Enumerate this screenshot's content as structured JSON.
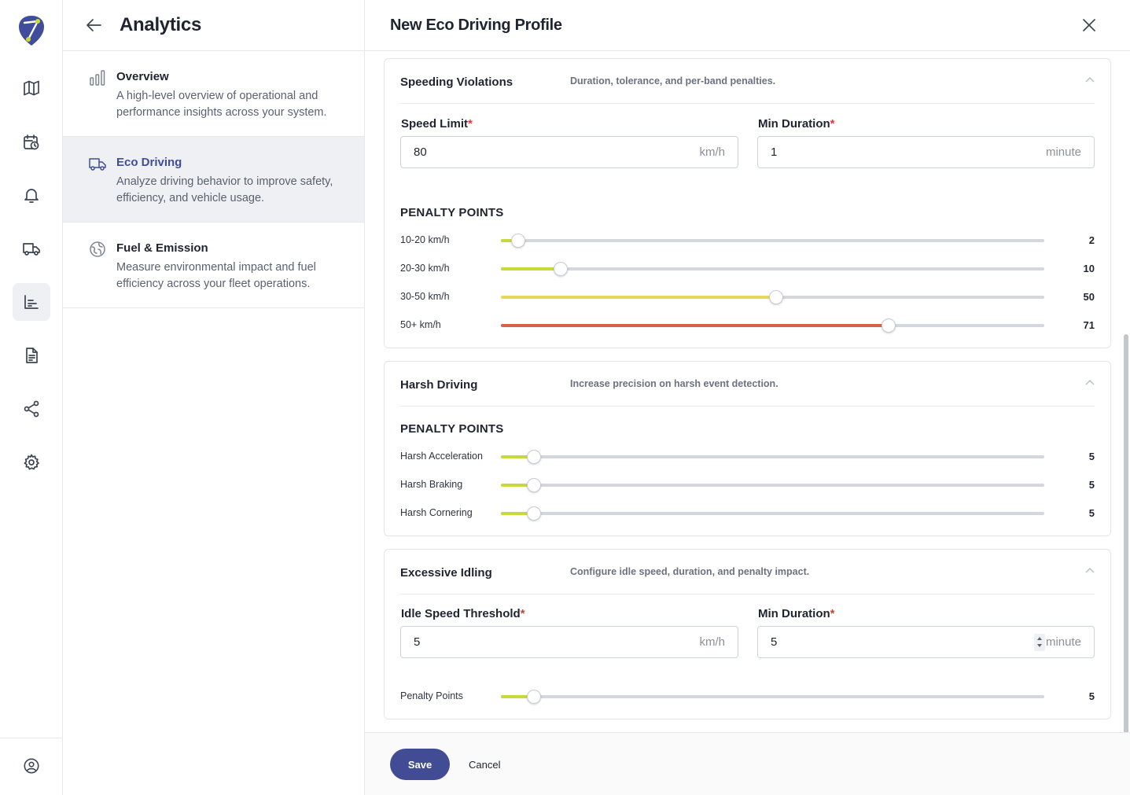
{
  "colors": {
    "accent": "#414c94",
    "low": "#c8d93a",
    "medium": "#e6d85a",
    "high": "#d9604a"
  },
  "nav": {
    "title": "Analytics",
    "items": [
      {
        "icon": "bar-chart-icon",
        "title": "Overview",
        "description": "A high-level overview of operational and performance insights across your system."
      },
      {
        "icon": "truck-icon",
        "title": "Eco Driving",
        "description": "Analyze driving behavior to improve safety, efficiency, and vehicle usage."
      },
      {
        "icon": "globe-leaf-icon",
        "title": "Fuel & Emission",
        "description": "Measure environmental impact and fuel efficiency across your fleet operations."
      }
    ]
  },
  "panel": {
    "title": "New Eco Driving Profile",
    "speeding": {
      "title": "Speeding Violations",
      "subtitle": "Duration, tolerance, and per-band penalties.",
      "speed_limit": {
        "label": "Speed Limit",
        "value": "80",
        "unit": "km/h"
      },
      "min_duration": {
        "label": "Min Duration",
        "value": "1",
        "unit": "minute"
      },
      "penalty_caption": "PENALTY POINTS",
      "bands": [
        {
          "label": "10-20 km/h",
          "value": 2,
          "level": "low"
        },
        {
          "label": "20-30 km/h",
          "value": 10,
          "level": "low"
        },
        {
          "label": "30-50 km/h",
          "value": 50,
          "level": "medium"
        },
        {
          "label": "50+ km/h",
          "value": 71,
          "level": "high"
        }
      ]
    },
    "harsh": {
      "title": "Harsh Driving",
      "subtitle": "Increase precision on harsh event detection.",
      "penalty_caption": "PENALTY POINTS",
      "events": [
        {
          "label": "Harsh Acceleration",
          "value": 5,
          "level": "low"
        },
        {
          "label": "Harsh Braking",
          "value": 5,
          "level": "low"
        },
        {
          "label": "Harsh Cornering",
          "value": 5,
          "level": "low"
        }
      ]
    },
    "idling": {
      "title": "Excessive Idling",
      "subtitle": "Configure idle speed, duration, and penalty impact.",
      "idle_speed": {
        "label": "Idle Speed Threshold",
        "value": "5",
        "unit": "km/h"
      },
      "min_duration": {
        "label": "Min Duration",
        "value": "5",
        "unit": "minute"
      },
      "penalty": {
        "label": "Penalty Points",
        "value": 5,
        "level": "low"
      }
    },
    "footer": {
      "save_label": "Save",
      "cancel_label": "Cancel"
    }
  }
}
